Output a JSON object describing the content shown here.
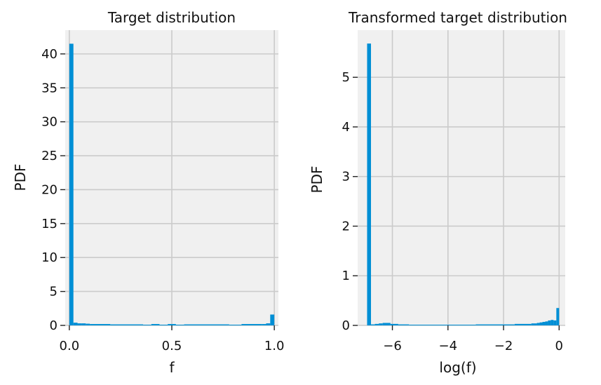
{
  "chart_data": [
    {
      "type": "bar",
      "title": "Target distribution",
      "xlabel": "f",
      "ylabel": "PDF",
      "xlim": [
        -0.02,
        1.02
      ],
      "ylim": [
        0,
        43.5
      ],
      "xticks": [
        0.0,
        0.5,
        1.0
      ],
      "xtick_labels": [
        "0.0",
        "0.5",
        "1.0"
      ],
      "yticks": [
        0,
        5,
        10,
        15,
        20,
        25,
        30,
        35,
        40
      ],
      "ytick_labels": [
        "0",
        "5",
        "10",
        "15",
        "20",
        "25",
        "30",
        "35",
        "40"
      ],
      "grid": true,
      "bar_color": "#008fd5",
      "bins": [
        {
          "x0": 0.0,
          "x1": 0.02,
          "value": 41.5
        },
        {
          "x0": 0.02,
          "x1": 0.04,
          "value": 0.4
        },
        {
          "x0": 0.04,
          "x1": 0.06,
          "value": 0.3
        },
        {
          "x0": 0.06,
          "x1": 0.08,
          "value": 0.3
        },
        {
          "x0": 0.08,
          "x1": 0.1,
          "value": 0.25
        },
        {
          "x0": 0.1,
          "x1": 0.2,
          "value": 0.2
        },
        {
          "x0": 0.2,
          "x1": 0.36,
          "value": 0.15
        },
        {
          "x0": 0.36,
          "x1": 0.4,
          "value": 0.1
        },
        {
          "x0": 0.4,
          "x1": 0.44,
          "value": 0.2
        },
        {
          "x0": 0.44,
          "x1": 0.48,
          "value": 0.1
        },
        {
          "x0": 0.48,
          "x1": 0.52,
          "value": 0.2
        },
        {
          "x0": 0.52,
          "x1": 0.56,
          "value": 0.05
        },
        {
          "x0": 0.56,
          "x1": 0.78,
          "value": 0.15
        },
        {
          "x0": 0.78,
          "x1": 0.84,
          "value": 0.05
        },
        {
          "x0": 0.84,
          "x1": 0.94,
          "value": 0.2
        },
        {
          "x0": 0.94,
          "x1": 0.96,
          "value": 0.2
        },
        {
          "x0": 0.96,
          "x1": 0.98,
          "value": 0.3
        },
        {
          "x0": 0.98,
          "x1": 1.0,
          "value": 1.6
        }
      ]
    },
    {
      "type": "bar",
      "title": "Transformed target distribution",
      "xlabel": "log(f)",
      "ylabel": "PDF",
      "xlim": [
        -7.25,
        0.22
      ],
      "ylim": [
        0,
        5.95
      ],
      "xticks": [
        -6,
        -4,
        -2,
        0
      ],
      "xtick_labels": [
        "−6",
        "−4",
        "−2",
        "0"
      ],
      "yticks": [
        0,
        1,
        2,
        3,
        4,
        5
      ],
      "ytick_labels": [
        "0",
        "1",
        "2",
        "3",
        "4",
        "5"
      ],
      "grid": true,
      "bar_color": "#008fd5",
      "bins": [
        {
          "x0": -6.91,
          "x1": -6.77,
          "value": 5.68
        },
        {
          "x0": -6.77,
          "x1": -6.63,
          "value": 0.02
        },
        {
          "x0": -6.63,
          "x1": -6.49,
          "value": 0.03
        },
        {
          "x0": -6.49,
          "x1": -6.35,
          "value": 0.04
        },
        {
          "x0": -6.35,
          "x1": -6.07,
          "value": 0.05
        },
        {
          "x0": -6.07,
          "x1": -5.79,
          "value": 0.03
        },
        {
          "x0": -5.79,
          "x1": -5.4,
          "value": 0.02
        },
        {
          "x0": -5.4,
          "x1": -4.0,
          "value": 0.01
        },
        {
          "x0": -4.0,
          "x1": -3.0,
          "value": 0.01
        },
        {
          "x0": -3.0,
          "x1": -2.0,
          "value": 0.02
        },
        {
          "x0": -2.0,
          "x1": -1.6,
          "value": 0.02
        },
        {
          "x0": -1.6,
          "x1": -1.0,
          "value": 0.03
        },
        {
          "x0": -1.0,
          "x1": -0.8,
          "value": 0.04
        },
        {
          "x0": -0.8,
          "x1": -0.7,
          "value": 0.05
        },
        {
          "x0": -0.7,
          "x1": -0.6,
          "value": 0.06
        },
        {
          "x0": -0.6,
          "x1": -0.5,
          "value": 0.07
        },
        {
          "x0": -0.5,
          "x1": -0.4,
          "value": 0.08
        },
        {
          "x0": -0.4,
          "x1": -0.3,
          "value": 0.1
        },
        {
          "x0": -0.3,
          "x1": -0.2,
          "value": 0.11
        },
        {
          "x0": -0.2,
          "x1": -0.1,
          "value": 0.1
        },
        {
          "x0": -0.1,
          "x1": 0.0,
          "value": 0.35
        }
      ]
    }
  ]
}
